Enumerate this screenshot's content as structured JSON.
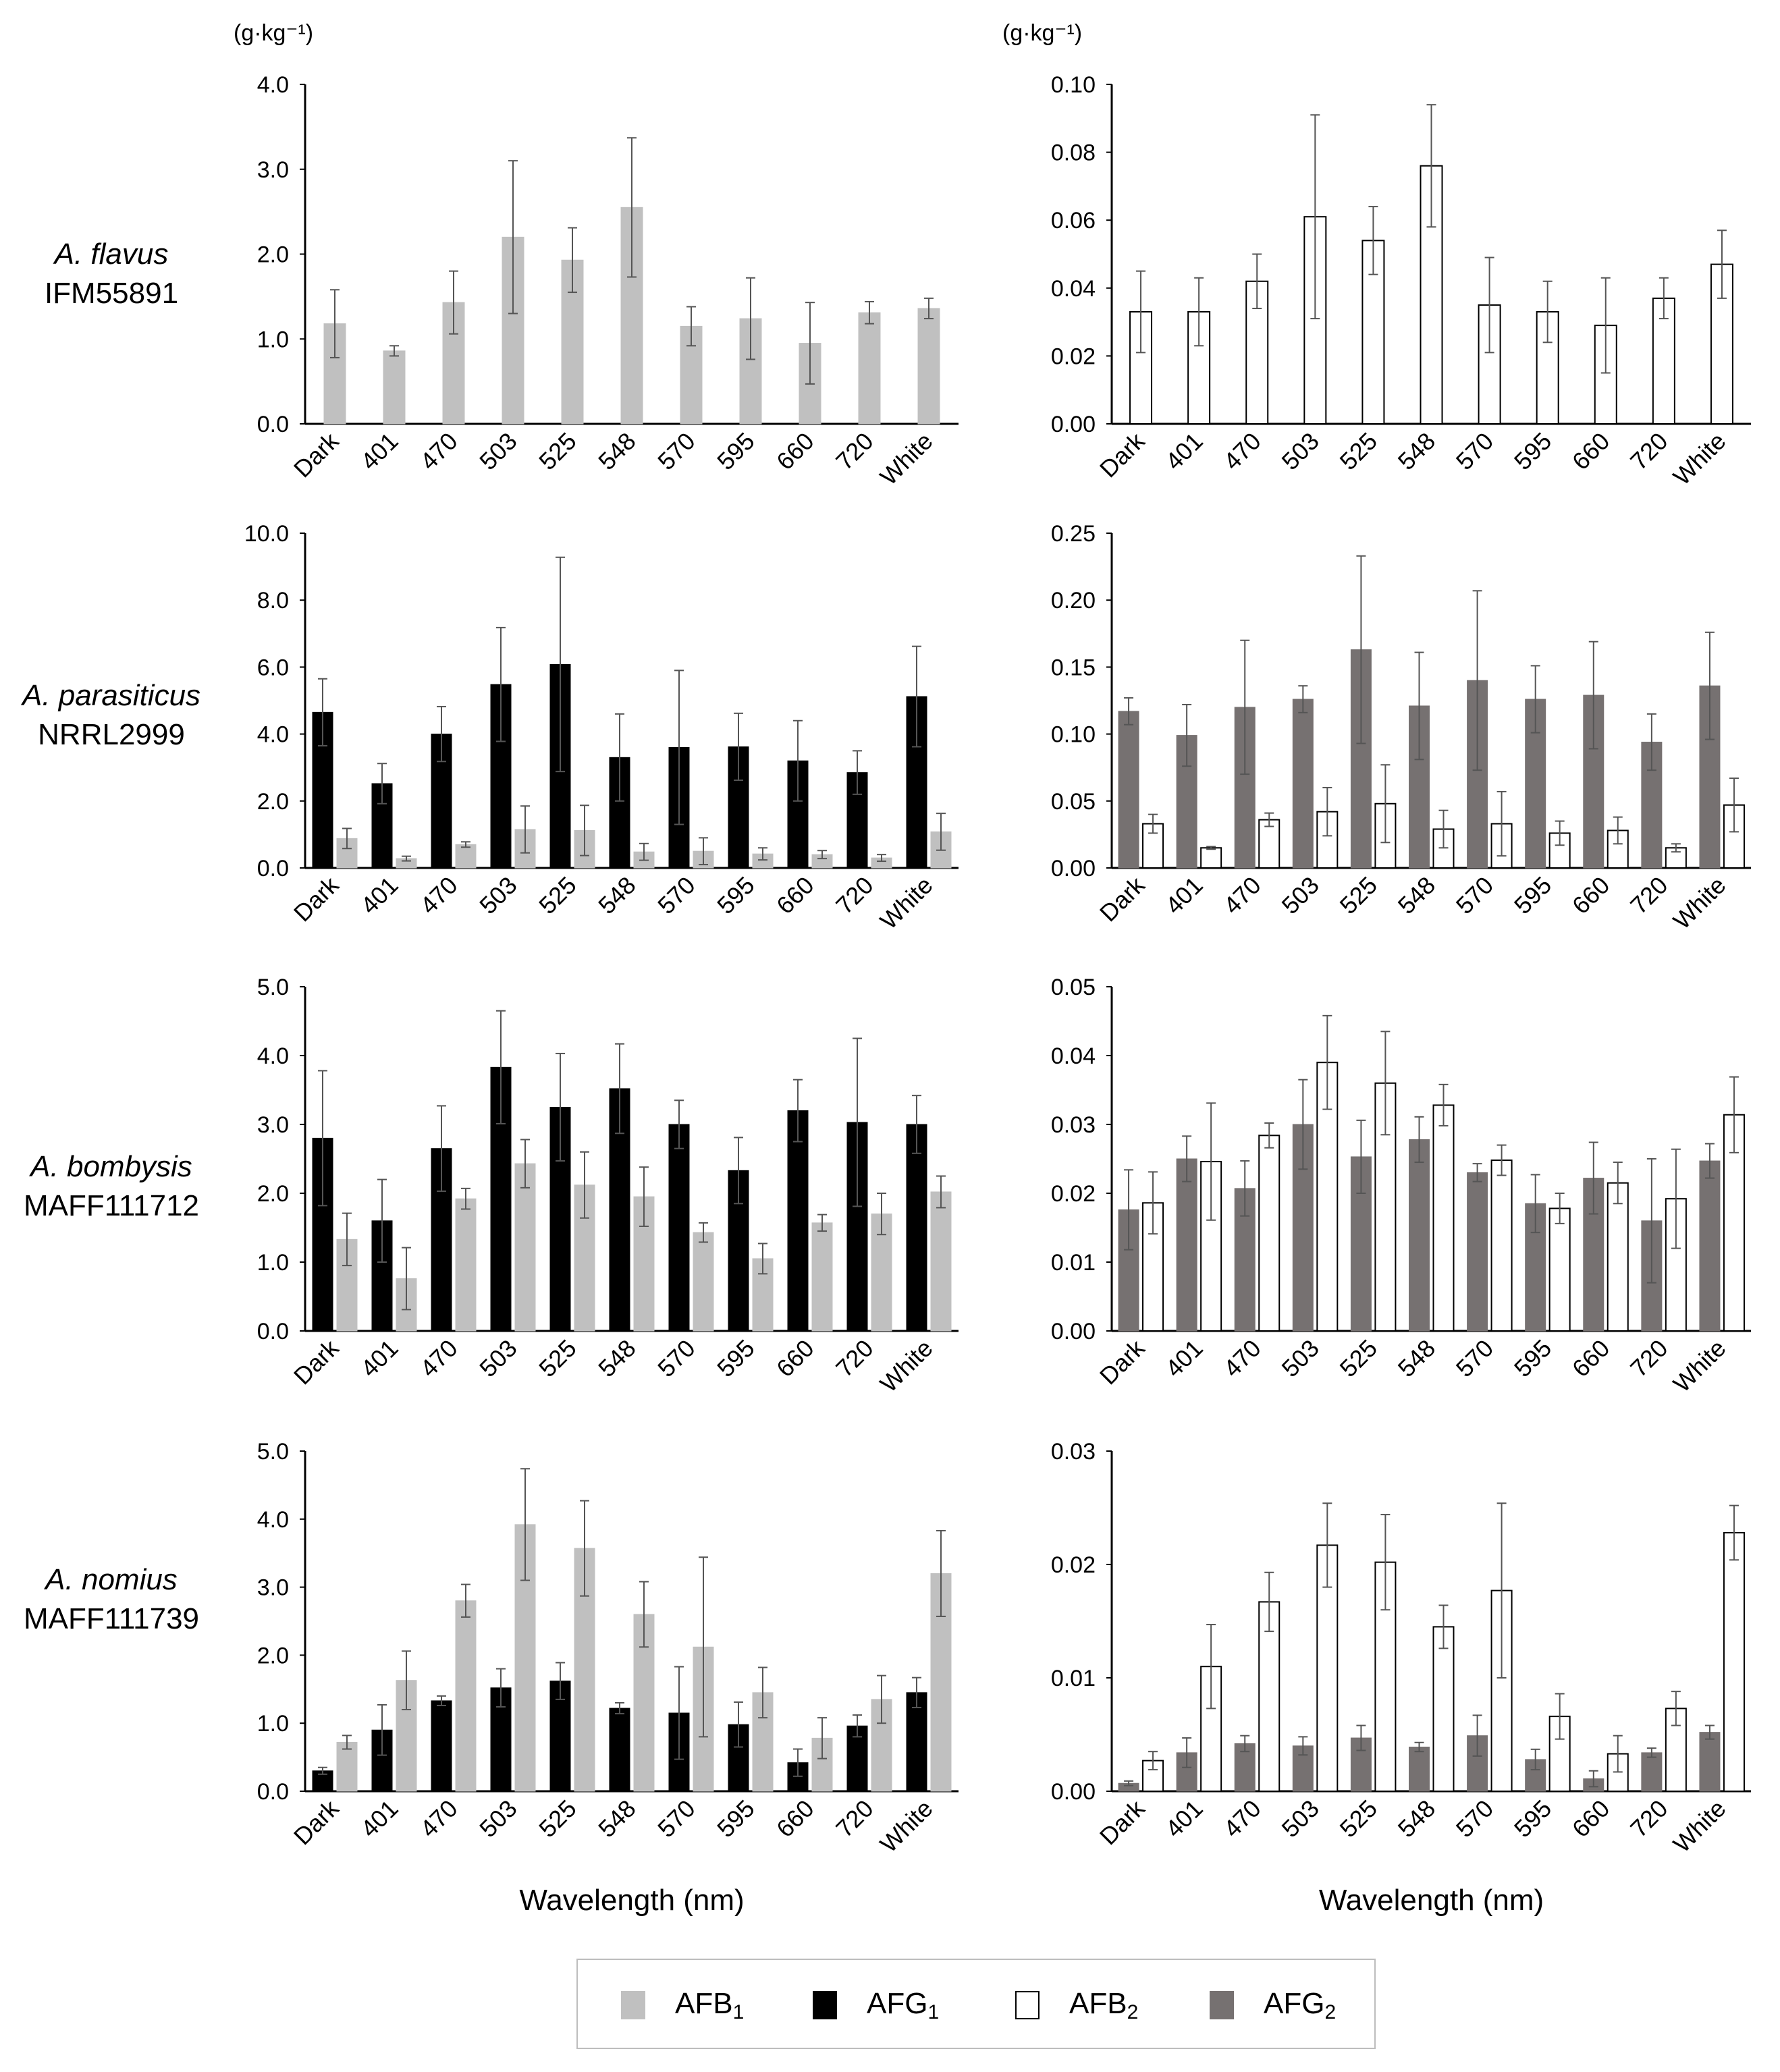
{
  "colors": {
    "AFB1": "#c0c0c0",
    "AFG1": "#000000",
    "AFB2": "#ffffff",
    "AFG2": "#767171",
    "axis": "#000000",
    "error_bar": "#555555"
  },
  "species": [
    {
      "italic": "A. flavus",
      "strain": "IFM55891"
    },
    {
      "italic": "A. parasiticus",
      "strain": "NRRL2999"
    },
    {
      "italic": "A. bombysis",
      "strain": "MAFF111712"
    },
    {
      "italic": "A. nomius",
      "strain": "MAFF111739"
    }
  ],
  "xlabel": "Wavelength (nm)",
  "legend": [
    {
      "key": "AFB1",
      "base": "AFB",
      "sub": "1"
    },
    {
      "key": "AFG1",
      "base": "AFG",
      "sub": "1"
    },
    {
      "key": "AFB2",
      "base": "AFB",
      "sub": "2"
    },
    {
      "key": "AFG2",
      "base": "AFG",
      "sub": "2"
    }
  ],
  "chart_data": [
    {
      "type": "bar",
      "row": 0,
      "col": 0,
      "unit": "(g·kg⁻¹)",
      "categories": [
        "Dark",
        "401",
        "470",
        "503",
        "525",
        "548",
        "570",
        "595",
        "660",
        "720",
        "White"
      ],
      "ylim": [
        0,
        4
      ],
      "ticks": [
        "0.0",
        "1.0",
        "2.0",
        "3.0",
        "4.0"
      ],
      "series": [
        {
          "name": "AFB1",
          "values": [
            1.18,
            0.86,
            1.43,
            2.2,
            1.93,
            2.55,
            1.15,
            1.24,
            0.95,
            1.31,
            1.36
          ],
          "errors": [
            0.4,
            0.06,
            0.37,
            0.9,
            0.38,
            0.82,
            0.23,
            0.48,
            0.48,
            0.13,
            0.12
          ]
        }
      ]
    },
    {
      "type": "bar",
      "row": 0,
      "col": 1,
      "unit": "(g·kg⁻¹)",
      "categories": [
        "Dark",
        "401",
        "470",
        "503",
        "525",
        "548",
        "570",
        "595",
        "660",
        "720",
        "White"
      ],
      "ylim": [
        0,
        0.1
      ],
      "ticks": [
        "0.00",
        "0.02",
        "0.04",
        "0.06",
        "0.08",
        "0.10"
      ],
      "series": [
        {
          "name": "AFB2",
          "values": [
            0.033,
            0.033,
            0.042,
            0.061,
            0.054,
            0.076,
            0.035,
            0.033,
            0.029,
            0.037,
            0.047
          ],
          "errors": [
            0.012,
            0.01,
            0.008,
            0.03,
            0.01,
            0.018,
            0.014,
            0.009,
            0.014,
            0.006,
            0.01
          ]
        }
      ]
    },
    {
      "type": "bar",
      "row": 1,
      "col": 0,
      "categories": [
        "Dark",
        "401",
        "470",
        "503",
        "525",
        "548",
        "570",
        "595",
        "660",
        "720",
        "White"
      ],
      "ylim": [
        0,
        10
      ],
      "ticks": [
        "0.0",
        "2.0",
        "4.0",
        "6.0",
        "8.0",
        "10.0"
      ],
      "series": [
        {
          "name": "AFG1",
          "values": [
            4.65,
            2.52,
            4.0,
            5.48,
            6.08,
            3.3,
            3.6,
            3.62,
            3.2,
            2.85,
            5.12
          ],
          "errors": [
            1.0,
            0.6,
            0.82,
            1.7,
            3.2,
            1.3,
            2.3,
            1.0,
            1.2,
            0.65,
            1.5
          ]
        },
        {
          "name": "AFB1",
          "values": [
            0.88,
            0.28,
            0.7,
            1.15,
            1.12,
            0.48,
            0.5,
            0.42,
            0.4,
            0.3,
            1.08
          ],
          "errors": [
            0.3,
            0.07,
            0.08,
            0.7,
            0.75,
            0.25,
            0.4,
            0.18,
            0.12,
            0.1,
            0.55
          ]
        }
      ]
    },
    {
      "type": "bar",
      "row": 1,
      "col": 1,
      "categories": [
        "Dark",
        "401",
        "470",
        "503",
        "525",
        "548",
        "570",
        "595",
        "660",
        "720",
        "White"
      ],
      "ylim": [
        0,
        0.25
      ],
      "ticks": [
        "0.00",
        "0.05",
        "0.10",
        "0.15",
        "0.20",
        "0.25"
      ],
      "series": [
        {
          "name": "AFG2",
          "values": [
            0.117,
            0.099,
            0.12,
            0.126,
            0.163,
            0.121,
            0.14,
            0.126,
            0.129,
            0.094,
            0.136
          ],
          "errors": [
            0.01,
            0.023,
            0.05,
            0.01,
            0.07,
            0.04,
            0.067,
            0.025,
            0.04,
            0.021,
            0.04
          ]
        },
        {
          "name": "AFB2",
          "values": [
            0.033,
            0.015,
            0.036,
            0.042,
            0.048,
            0.029,
            0.033,
            0.026,
            0.028,
            0.015,
            0.047
          ],
          "errors": [
            0.007,
            0.001,
            0.005,
            0.018,
            0.029,
            0.014,
            0.024,
            0.009,
            0.01,
            0.003,
            0.02
          ]
        }
      ]
    },
    {
      "type": "bar",
      "row": 2,
      "col": 0,
      "categories": [
        "Dark",
        "401",
        "470",
        "503",
        "525",
        "548",
        "570",
        "595",
        "660",
        "720",
        "White"
      ],
      "ylim": [
        0,
        5
      ],
      "ticks": [
        "0.0",
        "1.0",
        "2.0",
        "3.0",
        "4.0",
        "5.0"
      ],
      "series": [
        {
          "name": "AFG1",
          "values": [
            2.8,
            1.6,
            2.65,
            3.83,
            3.25,
            3.52,
            3.0,
            2.33,
            3.2,
            3.03,
            3.0
          ],
          "errors": [
            0.98,
            0.6,
            0.62,
            0.82,
            0.78,
            0.65,
            0.35,
            0.48,
            0.45,
            1.22,
            0.42
          ]
        },
        {
          "name": "AFB1",
          "values": [
            1.33,
            0.76,
            1.92,
            2.43,
            2.12,
            1.95,
            1.43,
            1.05,
            1.57,
            1.7,
            2.02
          ],
          "errors": [
            0.38,
            0.45,
            0.15,
            0.35,
            0.48,
            0.43,
            0.14,
            0.22,
            0.12,
            0.3,
            0.23
          ]
        }
      ]
    },
    {
      "type": "bar",
      "row": 2,
      "col": 1,
      "categories": [
        "Dark",
        "401",
        "470",
        "503",
        "525",
        "548",
        "570",
        "595",
        "660",
        "720",
        "White"
      ],
      "ylim": [
        0,
        0.05
      ],
      "ticks": [
        "0.00",
        "0.01",
        "0.02",
        "0.03",
        "0.04",
        "0.05"
      ],
      "series": [
        {
          "name": "AFG2",
          "values": [
            0.0176,
            0.025,
            0.0207,
            0.03,
            0.0253,
            0.0278,
            0.023,
            0.0185,
            0.0222,
            0.016,
            0.0247
          ],
          "errors": [
            0.0058,
            0.0033,
            0.004,
            0.0065,
            0.0053,
            0.0033,
            0.0013,
            0.0042,
            0.0052,
            0.009,
            0.0025
          ]
        },
        {
          "name": "AFB2",
          "values": [
            0.0186,
            0.0246,
            0.0284,
            0.039,
            0.036,
            0.0328,
            0.0248,
            0.0178,
            0.0215,
            0.0192,
            0.0314
          ],
          "errors": [
            0.0045,
            0.0085,
            0.0018,
            0.0068,
            0.0075,
            0.003,
            0.0022,
            0.0022,
            0.003,
            0.0072,
            0.0055
          ]
        }
      ]
    },
    {
      "type": "bar",
      "row": 3,
      "col": 0,
      "categories": [
        "Dark",
        "401",
        "470",
        "503",
        "525",
        "548",
        "570",
        "595",
        "660",
        "720",
        "White"
      ],
      "ylim": [
        0,
        5
      ],
      "ticks": [
        "0.0",
        "1.0",
        "2.0",
        "3.0",
        "4.0",
        "5.0"
      ],
      "series": [
        {
          "name": "AFG1",
          "values": [
            0.3,
            0.9,
            1.33,
            1.52,
            1.62,
            1.22,
            1.15,
            0.98,
            0.42,
            0.96,
            1.45
          ],
          "errors": [
            0.05,
            0.37,
            0.07,
            0.28,
            0.27,
            0.08,
            0.68,
            0.33,
            0.2,
            0.16,
            0.22
          ]
        },
        {
          "name": "AFB1",
          "values": [
            0.72,
            1.63,
            2.8,
            3.92,
            3.57,
            2.6,
            2.12,
            1.45,
            0.78,
            1.35,
            3.2
          ],
          "errors": [
            0.1,
            0.43,
            0.24,
            0.82,
            0.7,
            0.48,
            1.32,
            0.37,
            0.3,
            0.35,
            0.63
          ]
        }
      ]
    },
    {
      "type": "bar",
      "row": 3,
      "col": 1,
      "categories": [
        "Dark",
        "401",
        "470",
        "503",
        "525",
        "548",
        "570",
        "595",
        "660",
        "720",
        "White"
      ],
      "ylim": [
        0,
        0.03
      ],
      "ticks": [
        "0.00",
        "0.01",
        "0.02",
        "0.03"
      ],
      "series": [
        {
          "name": "AFG2",
          "values": [
            0.0007,
            0.0034,
            0.0042,
            0.004,
            0.0047,
            0.0039,
            0.0049,
            0.0028,
            0.0011,
            0.0034,
            0.0052
          ],
          "errors": [
            0.0002,
            0.0013,
            0.0007,
            0.0008,
            0.0011,
            0.0004,
            0.0018,
            0.0009,
            0.0007,
            0.0004,
            0.0006
          ]
        },
        {
          "name": "AFB2",
          "values": [
            0.0027,
            0.011,
            0.0167,
            0.0217,
            0.0202,
            0.0145,
            0.0177,
            0.0066,
            0.0033,
            0.0073,
            0.0228
          ],
          "errors": [
            0.0008,
            0.0037,
            0.0026,
            0.0037,
            0.0042,
            0.0019,
            0.0077,
            0.002,
            0.0016,
            0.0015,
            0.0024
          ]
        }
      ]
    }
  ]
}
